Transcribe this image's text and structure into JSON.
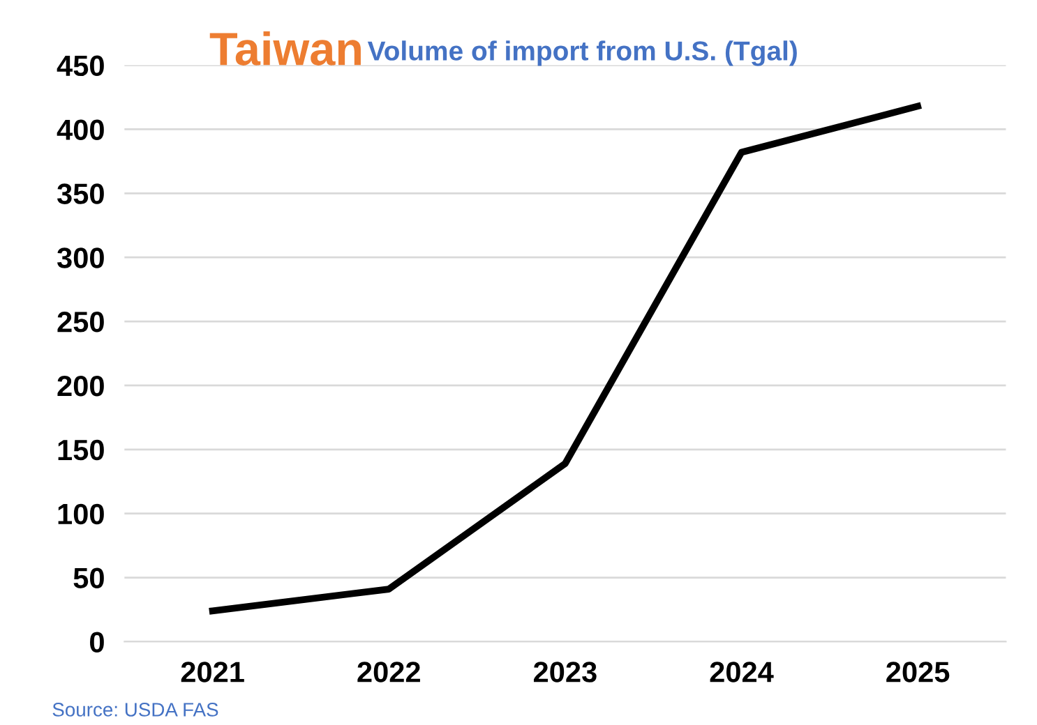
{
  "chart_data": {
    "type": "line",
    "title": "Taiwan",
    "subtitle": "Volume of import from U.S. (Tgal)",
    "categories": [
      "2021",
      "2022",
      "2023",
      "2024",
      "2025"
    ],
    "series": [
      {
        "color": "#000000",
        "values": [
          24,
          41,
          139,
          382,
          418
        ]
      }
    ],
    "ylim": [
      0,
      450
    ],
    "yticks": [
      0,
      50,
      100,
      150,
      200,
      250,
      300,
      350,
      400,
      450
    ],
    "grid": "y",
    "marker": "none",
    "line_style": "solid",
    "annotations": [
      "Source: USDA FAS"
    ]
  }
}
